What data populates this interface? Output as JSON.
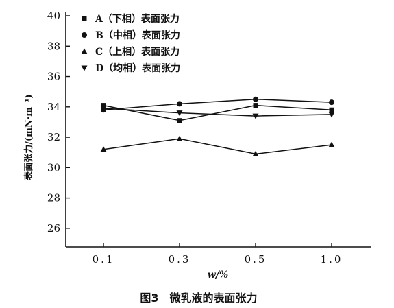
{
  "chart_data": {
    "type": "line",
    "categories": [
      "0.1",
      "0.3",
      "0.5",
      "1.0"
    ],
    "xlabel": "w/%",
    "ylabel": "表面张力/(mN·m⁻¹)",
    "ylim": [
      25,
      40
    ],
    "yticks": [
      "26",
      "28",
      "30",
      "32",
      "34",
      "36",
      "38",
      "40"
    ],
    "grid": false,
    "legend_position": "top-left",
    "series": [
      {
        "name": "A（下相）表面张力",
        "marker": "square",
        "values": [
          34.1,
          33.1,
          34.1,
          33.8
        ]
      },
      {
        "name": "B（中相）表面张力",
        "marker": "circle",
        "values": [
          33.8,
          34.2,
          34.5,
          34.3
        ]
      },
      {
        "name": "C（上相）表面张力",
        "marker": "triangle-up",
        "values": [
          31.2,
          31.9,
          30.9,
          31.5
        ]
      },
      {
        "name": "D（均相）表面张力",
        "marker": "triangle-down",
        "values": [
          33.9,
          33.6,
          33.4,
          33.5
        ]
      }
    ],
    "caption": "图3　微乳液的表面张力"
  }
}
